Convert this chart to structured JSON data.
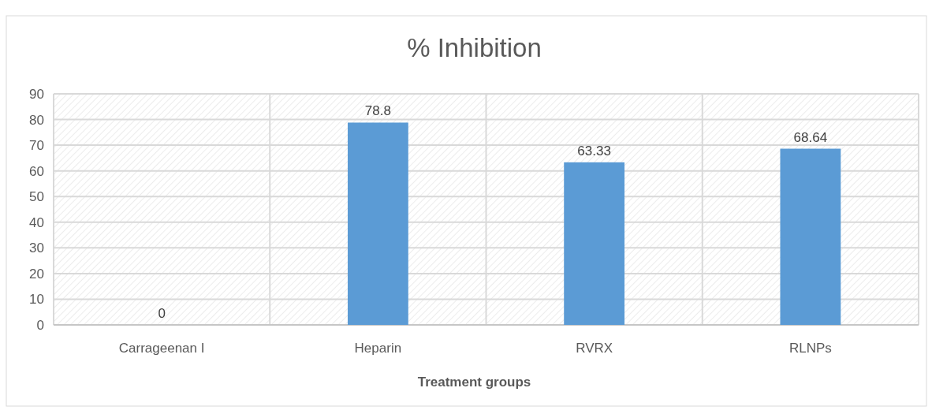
{
  "chart_data": {
    "type": "bar",
    "title": "% Inhibition",
    "xlabel": "Treatment groups",
    "categories": [
      "Carrageenan I",
      "Heparin",
      "RVRX",
      "RLNPs"
    ],
    "values": [
      0,
      78.8,
      63.33,
      68.64
    ],
    "color": "#5b9bd5",
    "ylim": [
      0,
      90
    ],
    "yticks": [
      0,
      10,
      20,
      30,
      40,
      50,
      60,
      70,
      80,
      90
    ],
    "grid": true,
    "data_labels": true
  }
}
